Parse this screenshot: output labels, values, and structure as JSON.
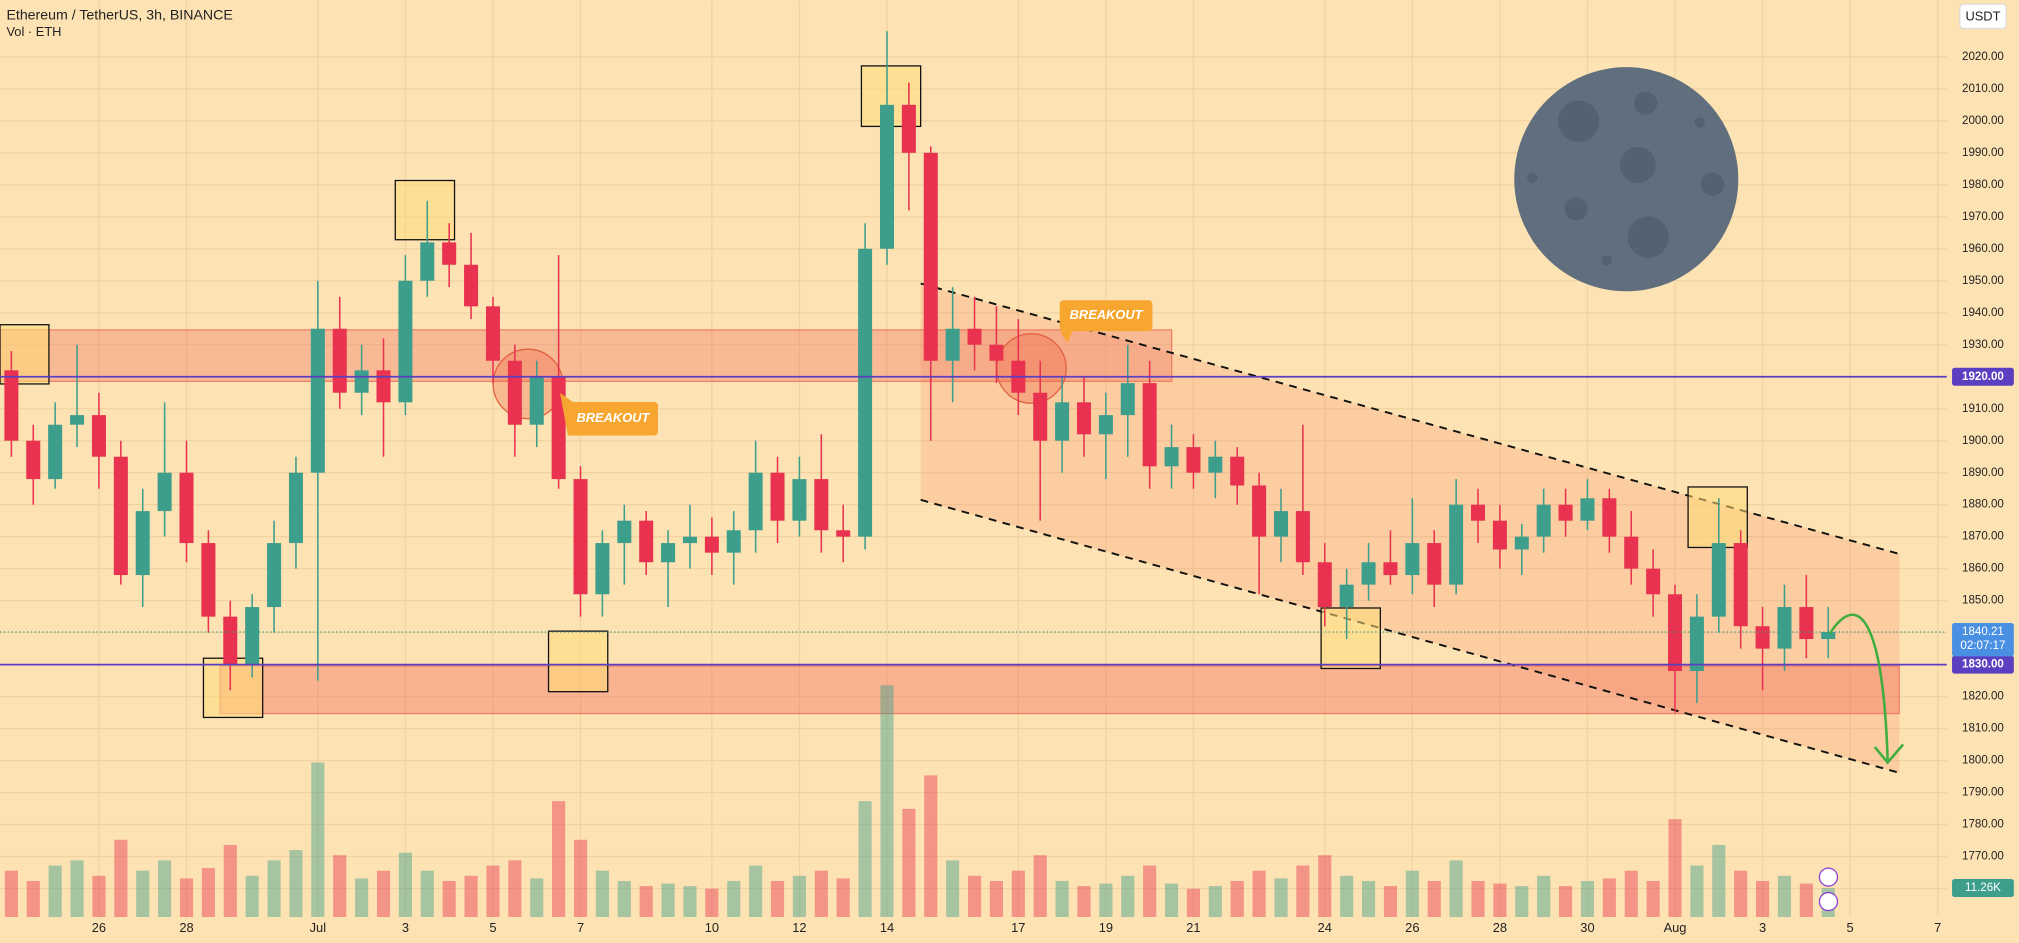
{
  "chart_data": {
    "type": "candlestick",
    "title": "Ethereum / TetherUS, 3h, BINANCE",
    "subtitle": "Vol · ETH",
    "currency": "USDT",
    "up_color": "#3d9e8c",
    "down_color": "#e8324f",
    "x": [
      0,
      0.5,
      1,
      1.5,
      2,
      2.5,
      3,
      3.5,
      4,
      4.5,
      5,
      5.5,
      6,
      6.5,
      7,
      7.5,
      8,
      8.5,
      9,
      9.5,
      10,
      10.5,
      11,
      11.5,
      12,
      12.5,
      13,
      13.5,
      14,
      14.5,
      15,
      15.5,
      16,
      16.5,
      17,
      17.5,
      18,
      18.5,
      19,
      19.5,
      20,
      20.5,
      21,
      21.5,
      22,
      22.5,
      23,
      23.5,
      24,
      24.5,
      25,
      25.5,
      26,
      26.5,
      27,
      27.5,
      28,
      28.5,
      29,
      29.5,
      30,
      30.5,
      31,
      31.5,
      32,
      32.5,
      33,
      33.5,
      34,
      34.5,
      35,
      35.5,
      36,
      36.5,
      37,
      37.5,
      38,
      38.5,
      39,
      39.5,
      40,
      40.5,
      41,
      41.5
    ],
    "ohlc": [
      [
        1922,
        1928,
        1895,
        1900
      ],
      [
        1900,
        1905,
        1880,
        1888
      ],
      [
        1888,
        1912,
        1885,
        1905
      ],
      [
        1905,
        1930,
        1898,
        1908
      ],
      [
        1908,
        1915,
        1885,
        1895
      ],
      [
        1895,
        1900,
        1855,
        1858
      ],
      [
        1858,
        1885,
        1848,
        1878
      ],
      [
        1878,
        1912,
        1870,
        1890
      ],
      [
        1890,
        1900,
        1862,
        1868
      ],
      [
        1868,
        1872,
        1840,
        1845
      ],
      [
        1845,
        1850,
        1822,
        1830
      ],
      [
        1830,
        1852,
        1826,
        1848
      ],
      [
        1848,
        1875,
        1840,
        1868
      ],
      [
        1868,
        1895,
        1860,
        1890
      ],
      [
        1890,
        1950,
        1825,
        1935
      ],
      [
        1935,
        1945,
        1910,
        1915
      ],
      [
        1915,
        1930,
        1908,
        1922
      ],
      [
        1922,
        1932,
        1895,
        1912
      ],
      [
        1912,
        1958,
        1908,
        1950
      ],
      [
        1950,
        1975,
        1945,
        1962
      ],
      [
        1962,
        1968,
        1948,
        1955
      ],
      [
        1955,
        1965,
        1938,
        1942
      ],
      [
        1942,
        1945,
        1918,
        1925
      ],
      [
        1925,
        1930,
        1895,
        1905
      ],
      [
        1905,
        1925,
        1898,
        1920
      ],
      [
        1920,
        1958,
        1885,
        1888
      ],
      [
        1888,
        1892,
        1845,
        1852
      ],
      [
        1852,
        1872,
        1845,
        1868
      ],
      [
        1868,
        1880,
        1855,
        1875
      ],
      [
        1875,
        1878,
        1858,
        1862
      ],
      [
        1862,
        1872,
        1848,
        1868
      ],
      [
        1868,
        1880,
        1860,
        1870
      ],
      [
        1870,
        1876,
        1858,
        1865
      ],
      [
        1865,
        1878,
        1855,
        1872
      ],
      [
        1872,
        1900,
        1865,
        1890
      ],
      [
        1890,
        1895,
        1868,
        1875
      ],
      [
        1875,
        1895,
        1870,
        1888
      ],
      [
        1888,
        1902,
        1865,
        1872
      ],
      [
        1872,
        1880,
        1862,
        1870
      ],
      [
        1870,
        1968,
        1866,
        1960
      ],
      [
        1960,
        2028,
        1955,
        2005
      ],
      [
        2005,
        2012,
        1972,
        1990
      ],
      [
        1990,
        1992,
        1900,
        1925
      ],
      [
        1925,
        1948,
        1912,
        1935
      ],
      [
        1935,
        1945,
        1922,
        1930
      ],
      [
        1930,
        1942,
        1918,
        1925
      ],
      [
        1925,
        1938,
        1908,
        1915
      ],
      [
        1915,
        1925,
        1875,
        1900
      ],
      [
        1900,
        1920,
        1890,
        1912
      ],
      [
        1912,
        1920,
        1895,
        1902
      ],
      [
        1902,
        1915,
        1888,
        1908
      ],
      [
        1908,
        1930,
        1895,
        1918
      ],
      [
        1918,
        1925,
        1885,
        1892
      ],
      [
        1892,
        1905,
        1885,
        1898
      ],
      [
        1898,
        1902,
        1885,
        1890
      ],
      [
        1890,
        1900,
        1882,
        1895
      ],
      [
        1895,
        1898,
        1880,
        1886
      ],
      [
        1886,
        1890,
        1852,
        1870
      ],
      [
        1870,
        1885,
        1862,
        1878
      ],
      [
        1878,
        1905,
        1858,
        1862
      ],
      [
        1862,
        1868,
        1842,
        1848
      ],
      [
        1848,
        1860,
        1838,
        1855
      ],
      [
        1855,
        1868,
        1850,
        1862
      ],
      [
        1862,
        1872,
        1855,
        1858
      ],
      [
        1858,
        1882,
        1852,
        1868
      ],
      [
        1868,
        1872,
        1848,
        1855
      ],
      [
        1855,
        1888,
        1852,
        1880
      ],
      [
        1880,
        1885,
        1868,
        1875
      ],
      [
        1875,
        1880,
        1860,
        1866
      ],
      [
        1866,
        1874,
        1858,
        1870
      ],
      [
        1870,
        1885,
        1865,
        1880
      ],
      [
        1880,
        1885,
        1870,
        1875
      ],
      [
        1875,
        1888,
        1872,
        1882
      ],
      [
        1882,
        1885,
        1865,
        1870
      ],
      [
        1870,
        1878,
        1855,
        1860
      ],
      [
        1860,
        1866,
        1845,
        1852
      ],
      [
        1852,
        1855,
        1815,
        1828
      ],
      [
        1828,
        1852,
        1818,
        1845
      ],
      [
        1845,
        1882,
        1840,
        1868
      ],
      [
        1868,
        1872,
        1835,
        1842
      ],
      [
        1842,
        1848,
        1822,
        1835
      ],
      [
        1835,
        1855,
        1828,
        1848
      ],
      [
        1848,
        1858,
        1832,
        1838
      ],
      [
        1838,
        1848,
        1832,
        1840.21
      ]
    ],
    "volume": [
      18,
      14,
      20,
      22,
      16,
      30,
      18,
      22,
      15,
      19,
      28,
      16,
      22,
      26,
      60,
      24,
      15,
      18,
      25,
      18,
      14,
      16,
      20,
      22,
      15,
      45,
      30,
      18,
      14,
      12,
      13,
      12,
      11,
      14,
      20,
      14,
      16,
      18,
      15,
      45,
      90,
      42,
      55,
      22,
      16,
      14,
      18,
      24,
      14,
      12,
      13,
      16,
      20,
      13,
      11,
      12,
      14,
      18,
      15,
      20,
      24,
      16,
      14,
      12,
      18,
      14,
      22,
      14,
      13,
      12,
      16,
      12,
      14,
      15,
      18,
      14,
      38,
      20,
      28,
      18,
      14,
      16,
      13,
      11.26
    ],
    "volume_label": {
      "value": 11.26,
      "label": "11.26K"
    },
    "vol_ylim": [
      0,
      100
    ],
    "xlim": [
      -0.26,
      44.21
    ],
    "ylim": [
      1751.1,
      2037.7
    ],
    "xticks": [
      {
        "value": 2,
        "label": "26"
      },
      {
        "value": 4,
        "label": "28"
      },
      {
        "value": 7,
        "label": "Jul"
      },
      {
        "value": 9,
        "label": "3"
      },
      {
        "value": 11,
        "label": "5"
      },
      {
        "value": 13,
        "label": "7"
      },
      {
        "value": 16,
        "label": "10"
      },
      {
        "value": 18,
        "label": "12"
      },
      {
        "value": 20,
        "label": "14"
      },
      {
        "value": 23,
        "label": "17"
      },
      {
        "value": 25,
        "label": "19"
      },
      {
        "value": 27,
        "label": "21"
      },
      {
        "value": 30,
        "label": "24"
      },
      {
        "value": 32,
        "label": "26"
      },
      {
        "value": 34,
        "label": "28"
      },
      {
        "value": 36,
        "label": "30"
      },
      {
        "value": 38,
        "label": "Aug"
      },
      {
        "value": 40,
        "label": "3"
      },
      {
        "value": 42,
        "label": "5"
      },
      {
        "value": 44,
        "label": "7"
      }
    ],
    "yticks": [
      {
        "value": 1760,
        "label": "1760.00"
      },
      {
        "value": 1770,
        "label": "1770.00"
      },
      {
        "value": 1780,
        "label": "1780.00"
      },
      {
        "value": 1790,
        "label": "1790.00"
      },
      {
        "value": 1800,
        "label": "1800.00"
      },
      {
        "value": 1810,
        "label": "1810.00"
      },
      {
        "value": 1820,
        "label": "1820.00"
      },
      {
        "value": 1830,
        "label": "1830.00"
      },
      {
        "value": 1840,
        "label": "1840.00"
      },
      {
        "value": 1850,
        "label": "1850.00"
      },
      {
        "value": 1860,
        "label": "1860.00"
      },
      {
        "value": 1870,
        "label": "1870.00"
      },
      {
        "value": 1880,
        "label": "1880.00"
      },
      {
        "value": 1890,
        "label": "1890.00"
      },
      {
        "value": 1900,
        "label": "1900.00"
      },
      {
        "value": 1910,
        "label": "1910.00"
      },
      {
        "value": 1920,
        "label": "1920.00"
      },
      {
        "value": 1930,
        "label": "1930.00"
      },
      {
        "value": 1940,
        "label": "1940.00"
      },
      {
        "value": 1950,
        "label": "1950.00"
      },
      {
        "value": 1960,
        "label": "1960.00"
      },
      {
        "value": 1970,
        "label": "1970.00"
      },
      {
        "value": 1980,
        "label": "1980.00"
      },
      {
        "value": 1990,
        "label": "1990.00"
      },
      {
        "value": 2000,
        "label": "2000.00"
      },
      {
        "value": 2010,
        "label": "2010.00"
      },
      {
        "value": 2020,
        "label": "2020.00"
      }
    ],
    "grid": true,
    "hlines": [
      {
        "value": 1920,
        "label": "1920.00"
      },
      {
        "value": 1830,
        "label": "1830.00"
      }
    ],
    "hline_color": "#5b3fc0",
    "last_price": {
      "value": 1840.21,
      "label": "1840.21"
    },
    "countdown": "02:07:17",
    "annotations": [
      "BREAKOUT",
      "BREAKOUT"
    ]
  }
}
